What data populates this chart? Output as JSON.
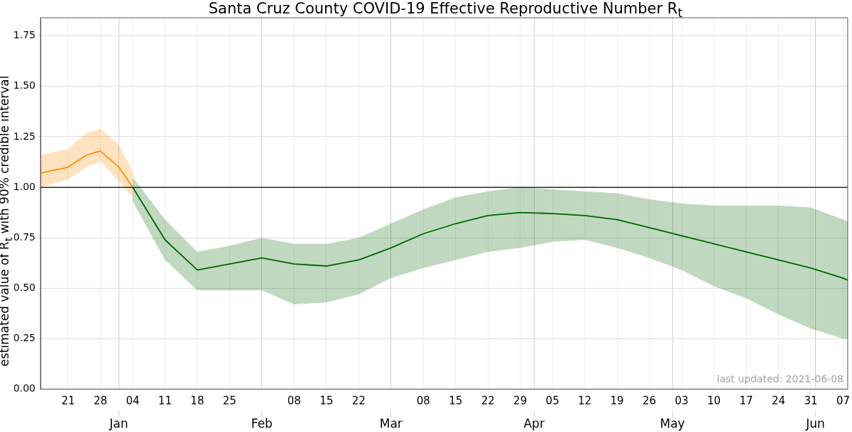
{
  "chart_data": {
    "type": "line",
    "title": "Santa Cruz County COVID-19 Effective Reproductive Number R$_{t}$",
    "ylabel": "estimated value of R$_{t}$ with 90% credible interval",
    "x2lim": [
      "2020-12-15",
      "2021-06-08"
    ],
    "x2ticks": [
      {
        "value": "2021-01-01",
        "label": "Jan"
      },
      {
        "value": "2021-02-01",
        "label": "Feb"
      },
      {
        "value": "2021-03-01",
        "label": "Mar"
      },
      {
        "value": "2021-04-01",
        "label": "Apr"
      },
      {
        "value": "2021-05-01",
        "label": "May"
      },
      {
        "value": "2021-06-01",
        "label": "Jun"
      }
    ],
    "xlim": [
      "2020-12-15",
      "2021-06-08"
    ],
    "xticks": [
      {
        "value": "2020-12-21",
        "label": "21"
      },
      {
        "value": "2020-12-28",
        "label": "28"
      },
      {
        "value": "2021-01-04",
        "label": "04"
      },
      {
        "value": "2021-01-11",
        "label": "11"
      },
      {
        "value": "2021-01-18",
        "label": "18"
      },
      {
        "value": "2021-01-25",
        "label": "25"
      },
      {
        "value": "2021-02-08",
        "label": "08"
      },
      {
        "value": "2021-02-15",
        "label": "15"
      },
      {
        "value": "2021-02-22",
        "label": "22"
      },
      {
        "value": "2021-03-08",
        "label": "08"
      },
      {
        "value": "2021-03-15",
        "label": "15"
      },
      {
        "value": "2021-03-22",
        "label": "22"
      },
      {
        "value": "2021-03-29",
        "label": "29"
      },
      {
        "value": "2021-04-05",
        "label": "05"
      },
      {
        "value": "2021-04-12",
        "label": "12"
      },
      {
        "value": "2021-04-19",
        "label": "19"
      },
      {
        "value": "2021-04-26",
        "label": "26"
      },
      {
        "value": "2021-05-03",
        "label": "03"
      },
      {
        "value": "2021-05-10",
        "label": "10"
      },
      {
        "value": "2021-05-17",
        "label": "17"
      },
      {
        "value": "2021-05-24",
        "label": "24"
      },
      {
        "value": "2021-05-31",
        "label": "31"
      },
      {
        "value": "2021-06-07",
        "label": "07"
      }
    ],
    "ylim": [
      0,
      1.84
    ],
    "yticks": [
      {
        "value": 0,
        "label": "0.00"
      },
      {
        "value": 0.25,
        "label": "0.25"
      },
      {
        "value": 0.5,
        "label": "0.50"
      },
      {
        "value": 0.75,
        "label": "0.75"
      },
      {
        "value": 1,
        "label": "1.00"
      },
      {
        "value": 1.25,
        "label": "1.25"
      },
      {
        "value": 1.5,
        "label": "1.50"
      },
      {
        "value": 1.75,
        "label": "1.75"
      }
    ],
    "grid": true,
    "ref_lines": [
      {
        "axis": "y",
        "value": 1,
        "color": "#000000"
      }
    ],
    "annotations": [
      "last updated: 2021-06-08"
    ],
    "series": [
      {
        "color": "#ff8c00",
        "x": [
          "2020-12-15",
          "2020-12-21",
          "2020-12-25",
          "2020-12-28",
          "2021-01-01",
          "2021-01-04"
        ],
        "values": [
          1.07,
          1.1,
          1.16,
          1.18,
          1.1,
          1.0
        ],
        "lower": [
          1.0,
          1.04,
          1.1,
          1.13,
          1.03,
          0.95
        ],
        "upper": [
          1.16,
          1.19,
          1.27,
          1.29,
          1.21,
          1.08
        ]
      },
      {
        "color": "#006400",
        "x": [
          "2021-01-04",
          "2021-01-11",
          "2021-01-18",
          "2021-01-25",
          "2021-02-01",
          "2021-02-08",
          "2021-02-15",
          "2021-02-22",
          "2021-03-01",
          "2021-03-08",
          "2021-03-15",
          "2021-03-22",
          "2021-03-29",
          "2021-04-05",
          "2021-04-12",
          "2021-04-19",
          "2021-04-26",
          "2021-05-03",
          "2021-05-10",
          "2021-05-17",
          "2021-05-24",
          "2021-05-31",
          "2021-06-07",
          "2021-06-08"
        ],
        "values": [
          1.0,
          0.74,
          0.59,
          0.62,
          0.65,
          0.62,
          0.61,
          0.64,
          0.7,
          0.77,
          0.82,
          0.86,
          0.875,
          0.87,
          0.86,
          0.84,
          0.8,
          0.76,
          0.72,
          0.68,
          0.64,
          0.6,
          0.55,
          0.54
        ],
        "lower": [
          0.93,
          0.64,
          0.49,
          0.49,
          0.49,
          0.42,
          0.43,
          0.47,
          0.55,
          0.6,
          0.64,
          0.68,
          0.7,
          0.73,
          0.74,
          0.7,
          0.65,
          0.59,
          0.51,
          0.45,
          0.37,
          0.3,
          0.25,
          0.25
        ],
        "upper": [
          1.05,
          0.84,
          0.68,
          0.71,
          0.75,
          0.72,
          0.72,
          0.75,
          0.82,
          0.89,
          0.95,
          0.98,
          1.0,
          0.99,
          0.98,
          0.97,
          0.94,
          0.92,
          0.91,
          0.91,
          0.91,
          0.9,
          0.84,
          0.83
        ]
      }
    ]
  }
}
